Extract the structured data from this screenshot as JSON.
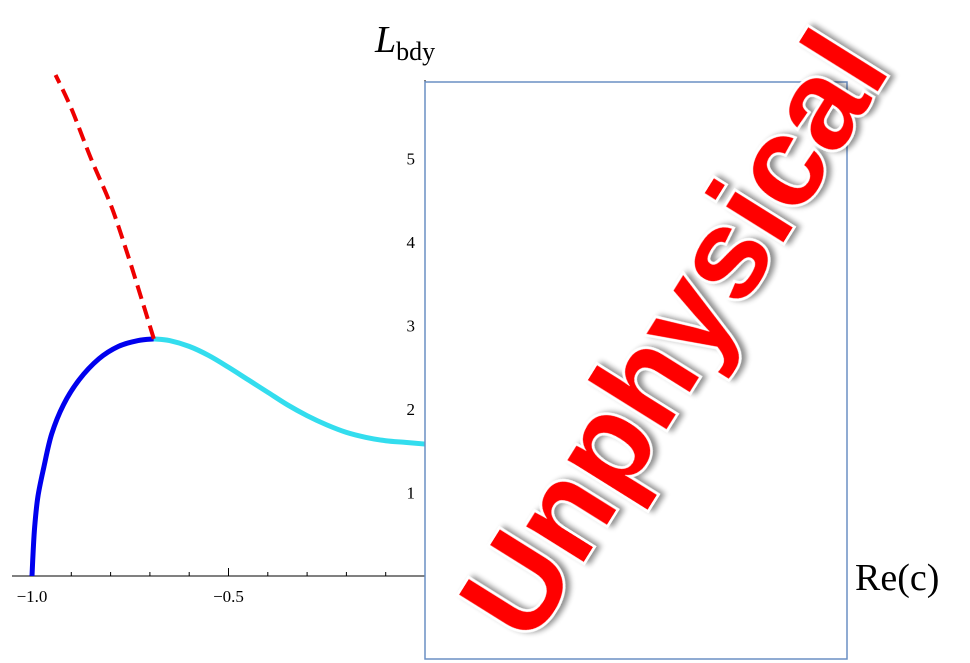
{
  "chart_data": {
    "type": "line",
    "xlabel": "Re(c)",
    "ylabel_main": "L",
    "ylabel_sub": "bdy",
    "xlim": [
      -1.0,
      0.0
    ],
    "ylim": [
      0,
      6
    ],
    "x_ticks": [
      -1.0,
      -0.5
    ],
    "x_tick_labels": [
      "−1.0",
      "−0.5"
    ],
    "y_ticks": [
      1,
      2,
      3,
      4,
      5
    ],
    "y_tick_labels": [
      "1",
      "2",
      "3",
      "4",
      "5"
    ],
    "grid": false,
    "overlay_text": "Unphysical",
    "series": [
      {
        "style": "solid",
        "color": "#0000ee",
        "points": [
          [
            -1.0,
            0.0
          ],
          [
            -0.997,
            0.3
          ],
          [
            -0.993,
            0.6
          ],
          [
            -0.985,
            0.95
          ],
          [
            -0.97,
            1.3
          ],
          [
            -0.95,
            1.7
          ],
          [
            -0.92,
            2.05
          ],
          [
            -0.88,
            2.35
          ],
          [
            -0.83,
            2.6
          ],
          [
            -0.78,
            2.75
          ],
          [
            -0.73,
            2.82
          ],
          [
            -0.69,
            2.84
          ]
        ]
      },
      {
        "style": "solid",
        "color": "#33ddee",
        "points": [
          [
            -0.69,
            2.84
          ],
          [
            -0.65,
            2.82
          ],
          [
            -0.6,
            2.75
          ],
          [
            -0.55,
            2.64
          ],
          [
            -0.5,
            2.5
          ],
          [
            -0.45,
            2.35
          ],
          [
            -0.4,
            2.2
          ],
          [
            -0.35,
            2.05
          ],
          [
            -0.3,
            1.92
          ],
          [
            -0.25,
            1.81
          ],
          [
            -0.2,
            1.72
          ],
          [
            -0.15,
            1.66
          ],
          [
            -0.1,
            1.62
          ],
          [
            -0.05,
            1.6
          ],
          [
            0.0,
            1.58
          ]
        ]
      },
      {
        "style": "dashed",
        "color": "#ee0000",
        "points": [
          [
            -0.69,
            2.84
          ],
          [
            -0.72,
            3.3
          ],
          [
            -0.76,
            3.9
          ],
          [
            -0.8,
            4.45
          ],
          [
            -0.85,
            5.0
          ],
          [
            -0.9,
            5.6
          ],
          [
            -0.94,
            6.0
          ]
        ]
      }
    ]
  }
}
